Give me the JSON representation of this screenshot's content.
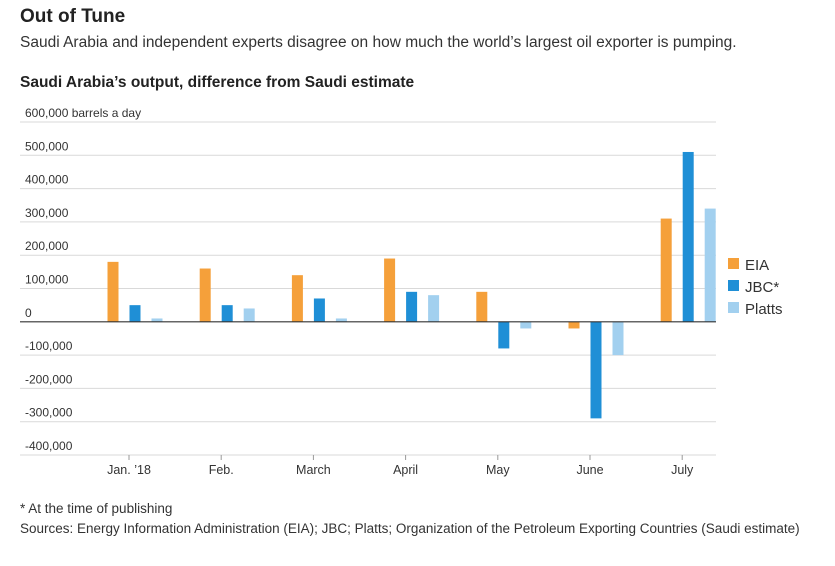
{
  "header": {
    "title": "Out of Tune",
    "subtitle": "Saudi Arabia and independent experts disagree on how much the world’s largest oil exporter is pumping."
  },
  "footer": {
    "note": "* At the time of publishing",
    "sources": "Sources: Energy Information Administration (EIA); JBC; Platts; Organization of the Petroleum Exporting Countries (Saudi estimate)"
  },
  "chart_data": {
    "type": "bar",
    "title": "Saudi Arabia’s output, difference from Saudi estimate",
    "ylabel": "barrels a day",
    "ylim": [
      -400000,
      600000
    ],
    "yticks": [
      {
        "value": 600000,
        "label": "600,000 barrels a day"
      },
      {
        "value": 500000,
        "label": "500,000"
      },
      {
        "value": 400000,
        "label": "400,000"
      },
      {
        "value": 300000,
        "label": "300,000"
      },
      {
        "value": 200000,
        "label": "200,000"
      },
      {
        "value": 100000,
        "label": "100,000"
      },
      {
        "value": 0,
        "label": "0"
      },
      {
        "value": -100000,
        "label": "-100,000"
      },
      {
        "value": -200000,
        "label": "-200,000"
      },
      {
        "value": -300000,
        "label": "-300,000"
      },
      {
        "value": -400000,
        "label": "-400,000"
      }
    ],
    "categories": [
      "Jan. ’18",
      "Feb.",
      "March",
      "April",
      "May",
      "June",
      "July"
    ],
    "series": [
      {
        "name": "EIA",
        "color": "#f5a03a",
        "values": [
          180000,
          160000,
          140000,
          190000,
          90000,
          -20000,
          310000
        ]
      },
      {
        "name": "JBC*",
        "color": "#1f8fd6",
        "values": [
          50000,
          50000,
          70000,
          90000,
          -80000,
          -290000,
          510000
        ]
      },
      {
        "name": "Platts",
        "color": "#a2d0ef",
        "values": [
          10000,
          40000,
          10000,
          80000,
          -20000,
          -100000,
          340000
        ]
      }
    ],
    "legend": "right"
  }
}
